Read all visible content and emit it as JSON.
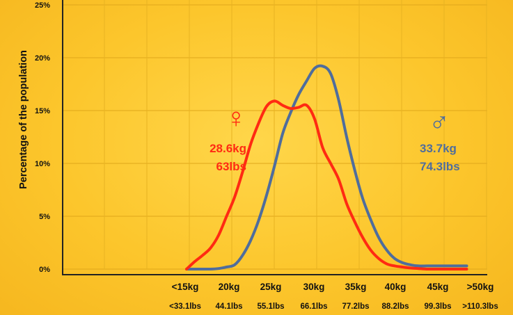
{
  "chart_data": {
    "type": "line",
    "title": "",
    "xlabel": "",
    "ylabel": "Percentage of the population",
    "ylim": [
      0,
      25
    ],
    "yticks": [
      "0%",
      "5%",
      "10%",
      "15%",
      "20%",
      "25%"
    ],
    "categories": [
      "<15kg",
      "20kg",
      "25kg",
      "30kg",
      "35kg",
      "40kg",
      "45kg",
      ">50kg"
    ],
    "categories_lbs": [
      "<33.1lbs",
      "44.1lbs",
      "55.1lbs",
      "66.1lbs",
      "77.2lbs",
      "88.2lbs",
      "99.3lbs",
      ">110.3lbs"
    ],
    "grid": true,
    "series": [
      {
        "name": "Female",
        "color": "#ff2a12",
        "symbol": "♀",
        "mean_kg": "28.6kg",
        "mean_lbs": "63lbs",
        "x": [
          15,
          16,
          17,
          18,
          19,
          20,
          21,
          22,
          23,
          24,
          25,
          26,
          27,
          28,
          29,
          30,
          31,
          32,
          33,
          34,
          35,
          36,
          37,
          38,
          39,
          40,
          41,
          42,
          43,
          44,
          45,
          46,
          47,
          48,
          49,
          50
        ],
        "values": [
          0,
          0.7,
          1.3,
          2.0,
          3.2,
          5.0,
          6.8,
          9.2,
          11.8,
          13.8,
          15.4,
          15.9,
          15.5,
          15.2,
          15.3,
          15.5,
          14.2,
          11.5,
          10.0,
          8.5,
          6.2,
          4.5,
          3.0,
          1.8,
          1.0,
          0.5,
          0.3,
          0.2,
          0.1,
          0.05,
          0,
          0,
          0,
          0,
          0,
          0
        ]
      },
      {
        "name": "Male",
        "color": "#4f6d9c",
        "symbol": "♂",
        "mean_kg": "33.7kg",
        "mean_lbs": "74.3lbs",
        "x": [
          15,
          16,
          17,
          18,
          19,
          20,
          21,
          22,
          23,
          24,
          25,
          26,
          27,
          28,
          29,
          30,
          31,
          32,
          33,
          34,
          35,
          36,
          37,
          38,
          39,
          40,
          41,
          42,
          43,
          44,
          45,
          46,
          47,
          48,
          49,
          50
        ],
        "values": [
          0,
          0,
          0,
          0,
          0.05,
          0.2,
          0.4,
          1.3,
          2.7,
          4.6,
          7.0,
          9.8,
          12.8,
          14.8,
          16.5,
          17.8,
          19.0,
          19.2,
          18.5,
          16.0,
          12.5,
          9.4,
          6.7,
          4.7,
          3.0,
          1.8,
          1.0,
          0.6,
          0.4,
          0.3,
          0.3,
          0.3,
          0.3,
          0.3,
          0.3,
          0.3
        ]
      }
    ]
  }
}
